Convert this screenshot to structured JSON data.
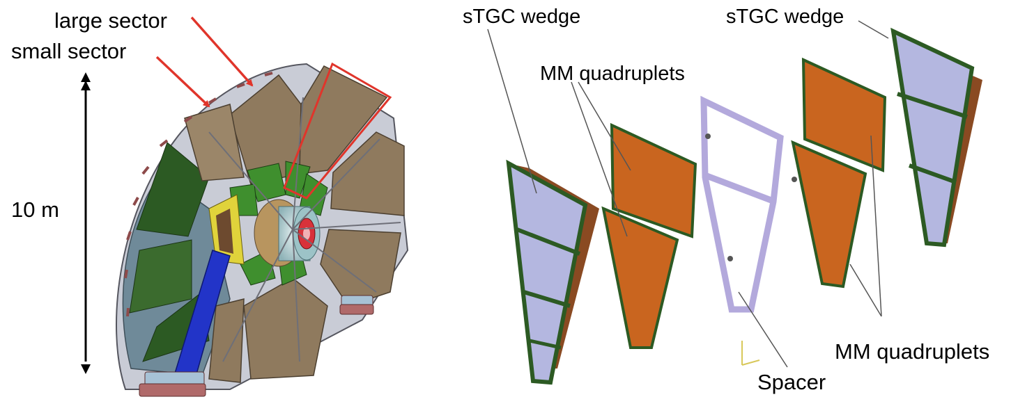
{
  "left_panel": {
    "labels": {
      "large_sector": "large sector",
      "small_sector": "small sector",
      "height": "10 m"
    }
  },
  "right_panel": {
    "labels": {
      "stgc_wedge_left": "sTGC wedge",
      "stgc_wedge_right": "sTGC wedge",
      "mm_quadruplets_top": "MM quadruplets",
      "mm_quadruplets_bottom": "MM quadruplets",
      "spacer": "Spacer"
    }
  },
  "colors": {
    "callout_red": "#e0352b",
    "sector_brown": "#8f7a5e",
    "chamber_green": "#2c5a23",
    "shield_blue": "#6f8a99",
    "beam_blue": "#2234c8",
    "stgc_lavender": "#b4b7e0",
    "mm_orange": "#c9651f",
    "spacer_violet": "#b3a9dc"
  }
}
